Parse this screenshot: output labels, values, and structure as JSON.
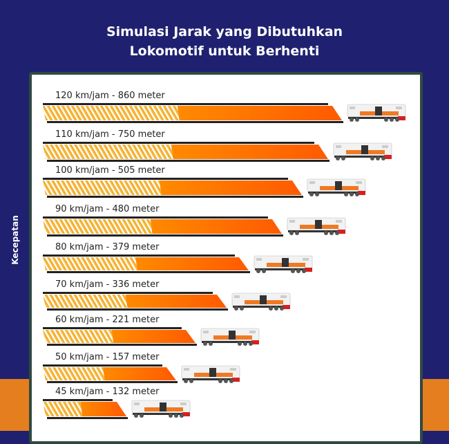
{
  "title_line1": "Simulasi Jarak yang Dibutuhkan",
  "title_line2": "Lokomotif untuk Berhenti",
  "colors": {
    "background": "#1f2170",
    "accent_band": "#e57e1f",
    "card_border": "#2f4a40",
    "bar_stripe": "#f6a928",
    "bar_solid": "#ff7200",
    "bar_edge": "#222222"
  },
  "chart_data": {
    "type": "bar",
    "orientation": "horizontal",
    "title": "Simulasi Jarak yang Dibutuhkan Lokomotif untuk Berhenti",
    "ylabel": "Kecepatan",
    "unit_speed": "km/jam",
    "unit_distance": "meter",
    "categories": [
      "120 km/jam",
      "110 km/jam",
      "100 km/jam",
      "90 km/jam",
      "80 km/jam",
      "70 km/jam",
      "60 km/jam",
      "50 km/jam",
      "45 km/jam"
    ],
    "values": [
      860,
      750,
      505,
      480,
      379,
      336,
      221,
      157,
      132
    ],
    "labels": [
      "120 km/jam - 860 meter",
      "110 km/jam - 750 meter",
      "100 km/jam - 505 meter",
      "90 km/jam - 480 meter",
      "80 km/jam - 379 meter",
      "70 km/jam - 336 meter",
      "60 km/jam - 221 meter",
      "50 km/jam - 157 meter",
      "45 km/jam - 132 meter"
    ],
    "marker_icon": "locomotive-icon"
  }
}
